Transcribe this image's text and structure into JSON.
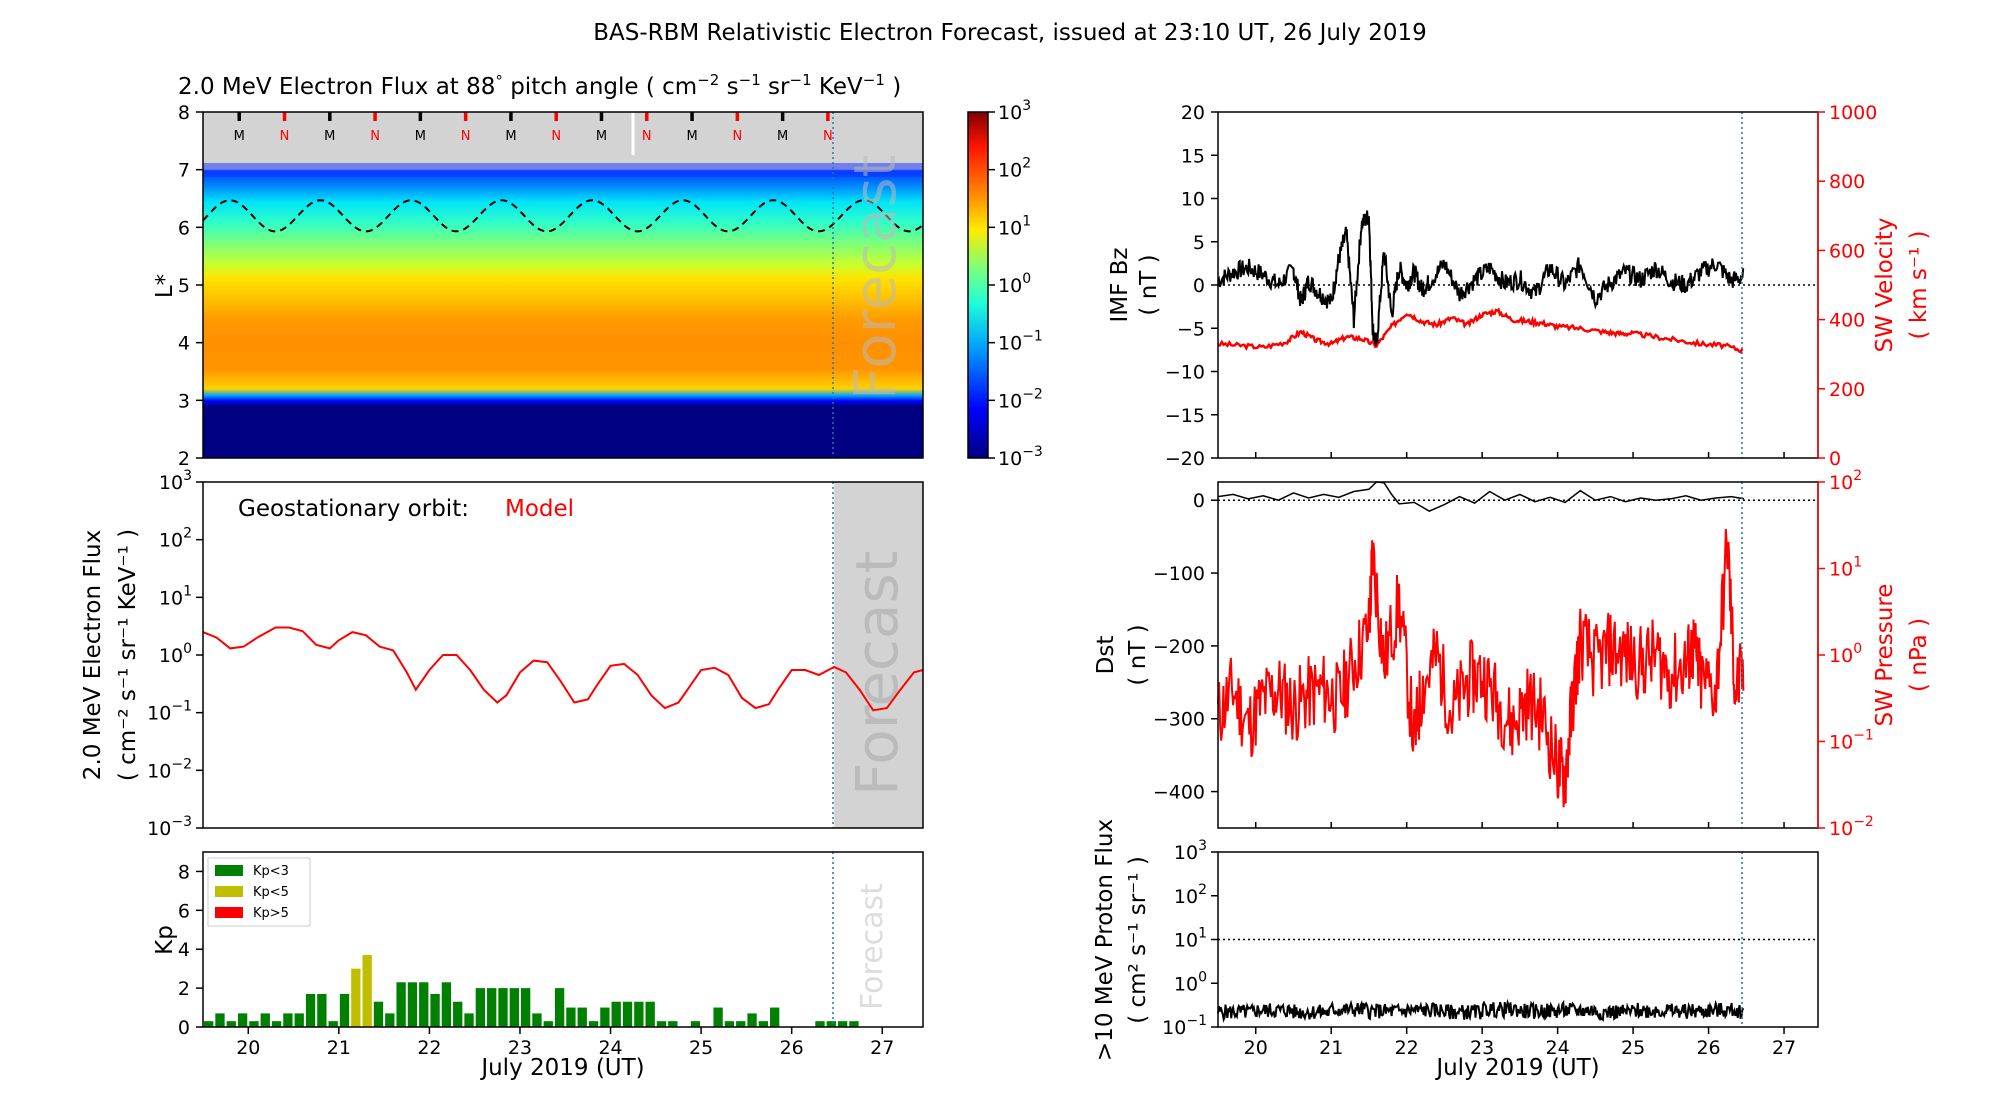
{
  "suptitle": "BAS-RBM Relativistic Electron Forecast, issued at 23:10 UT, 26 July 2019",
  "colors": {
    "red": "#ff0000",
    "kp_low": "#008000",
    "kp_mid": "#bfbf00",
    "kp_high": "#ff0000",
    "forecast_shade": "#d3d3d3",
    "dotted": "#1f77b4",
    "rbm_bg": "#00007f"
  },
  "chart_data": [
    {
      "id": "rbm_heatmap",
      "type": "heatmap",
      "title": "2.0 MeV Electron Flux at 88° pitch angle ( cm⁻² s⁻¹ sr⁻¹ KeV⁻¹ )",
      "title_parts": {
        "main": "2.0 MeV Electron Flux at 88",
        "deg": "°",
        "rest": " pitch angle ( cm",
        "exp1": "−2",
        "s": " s",
        "exp2": "−1",
        "sr": " sr",
        "exp3": "−1",
        "kev": " KeV",
        "exp4": "−1",
        "close": " )"
      },
      "ylabel": "L*",
      "ylim": [
        2,
        8
      ],
      "yticks": [
        "2",
        "3",
        "4",
        "5",
        "6",
        "7",
        "8"
      ],
      "xlim": [
        19.5,
        27.45
      ],
      "mn_markers": [
        "M",
        "N",
        "M",
        "N",
        "M",
        "N",
        "M",
        "N",
        "M",
        "N",
        "M",
        "N",
        "M",
        "N"
      ],
      "mn_x": [
        19.9,
        20.4,
        20.9,
        21.4,
        21.9,
        22.4,
        22.9,
        23.4,
        23.9,
        24.4,
        24.9,
        25.4,
        25.9,
        26.4
      ],
      "colorbar": {
        "min_exp": -3,
        "max_exp": 3,
        "labels": [
          "10",
          "10",
          "10",
          "10",
          "10",
          "10",
          "10"
        ],
        "exps": [
          "−3",
          "−2",
          "−1",
          "0",
          "1",
          "2",
          "3"
        ]
      },
      "forecast_label": "Forecast",
      "forecast_start": 26.47
    },
    {
      "id": "geo_flux",
      "type": "line",
      "label_static": "Geostationary orbit:",
      "label_model": "Model",
      "ylabel_1": "2.0 MeV Electron Flux",
      "ylabel_2": "( cm⁻² s⁻¹ sr⁻¹ KeV⁻¹ )",
      "ylim_exp": [
        -3,
        3
      ],
      "ytick_base": "10",
      "ytick_exps": [
        "−3",
        "−2",
        "−1",
        "0",
        "1",
        "2",
        "3"
      ],
      "xlim": [
        19.5,
        27.45
      ],
      "series": [
        {
          "name": "Model",
          "x": [
            19.5,
            19.65,
            19.8,
            19.95,
            20.1,
            20.3,
            20.45,
            20.6,
            20.75,
            20.9,
            21.0,
            21.15,
            21.3,
            21.45,
            21.6,
            21.75,
            21.85,
            22.0,
            22.15,
            22.3,
            22.45,
            22.6,
            22.75,
            22.85,
            23.0,
            23.15,
            23.3,
            23.45,
            23.6,
            23.75,
            23.85,
            24.0,
            24.15,
            24.3,
            24.45,
            24.6,
            24.75,
            24.85,
            25.0,
            25.15,
            25.3,
            25.45,
            25.6,
            25.75,
            25.85,
            26.0,
            26.15,
            26.3,
            26.47,
            26.6,
            26.75,
            26.9,
            27.05,
            27.2,
            27.35,
            27.45
          ],
          "y": [
            2.5,
            2.0,
            1.3,
            1.4,
            2.0,
            3.0,
            3.0,
            2.6,
            1.5,
            1.3,
            1.8,
            2.5,
            2.2,
            1.4,
            1.2,
            0.5,
            0.25,
            0.55,
            1.0,
            1.0,
            0.55,
            0.25,
            0.15,
            0.2,
            0.5,
            0.8,
            0.75,
            0.35,
            0.15,
            0.17,
            0.3,
            0.65,
            0.7,
            0.45,
            0.2,
            0.12,
            0.15,
            0.25,
            0.55,
            0.6,
            0.45,
            0.18,
            0.12,
            0.14,
            0.25,
            0.55,
            0.55,
            0.45,
            0.62,
            0.5,
            0.25,
            0.11,
            0.12,
            0.25,
            0.5,
            0.55
          ]
        }
      ],
      "forecast_label": "Forecast",
      "forecast_start": 26.47
    },
    {
      "id": "kp",
      "type": "bar",
      "ylabel": "Kp",
      "ylim": [
        0,
        9
      ],
      "yticks": [
        "0",
        "2",
        "4",
        "6",
        "8"
      ],
      "xlim": [
        19.5,
        27.45
      ],
      "xticks": [
        "20",
        "21",
        "22",
        "23",
        "24",
        "25",
        "26",
        "27"
      ],
      "xlabel": "July 2019 (UT)",
      "legend": [
        {
          "label": "Kp<3",
          "color": "#008000"
        },
        {
          "label": "Kp<5",
          "color": "#bfbf00"
        },
        {
          "label": "Kp>5",
          "color": "#ff0000"
        }
      ],
      "values": [
        0.3,
        0.7,
        0.3,
        0.7,
        0.3,
        0.7,
        0.3,
        0.7,
        0.7,
        1.7,
        1.7,
        0.3,
        1.7,
        3.0,
        3.7,
        1.3,
        0.7,
        2.3,
        2.3,
        2.3,
        1.7,
        2.3,
        1.3,
        0.7,
        2.0,
        2.0,
        2.0,
        2.0,
        2.0,
        0.7,
        0.3,
        2.0,
        1.0,
        1.0,
        0.3,
        1.0,
        1.3,
        1.3,
        1.3,
        1.3,
        0.3,
        0.3,
        0,
        0.3,
        0,
        1.0,
        0.3,
        0.3,
        0.7,
        0.3,
        1.0,
        0,
        0,
        0,
        0.3,
        0.3,
        0.3,
        0.3
      ],
      "forecast_label": "Forecast",
      "forecast_start": 26.47
    },
    {
      "id": "imf_sw",
      "type": "line",
      "ylabel_left_1": "IMF Bz",
      "ylabel_left_2": "( nT )",
      "ylabel_right_1": "SW Velocity",
      "ylabel_right_2": "( km s⁻¹ )",
      "ylim_left": [
        -20,
        20
      ],
      "yticks_left": [
        "−20",
        "−15",
        "−10",
        "−5",
        "0",
        "5",
        "10",
        "15",
        "20"
      ],
      "ylim_right": [
        0,
        1000
      ],
      "yticks_right": [
        "0",
        "200",
        "400",
        "600",
        "800",
        "1000"
      ],
      "xlim": [
        19.5,
        27.45
      ],
      "series": [
        {
          "name": "IMF Bz",
          "axis": "left",
          "x": [
            19.5,
            19.7,
            19.9,
            20.1,
            20.3,
            20.5,
            20.6,
            20.7,
            20.85,
            21.0,
            21.1,
            21.2,
            21.3,
            21.4,
            21.5,
            21.55,
            21.6,
            21.7,
            21.8,
            21.9,
            22.0,
            22.1,
            22.2,
            22.3,
            22.5,
            22.7,
            22.9,
            23.1,
            23.3,
            23.5,
            23.7,
            23.9,
            24.1,
            24.3,
            24.5,
            24.7,
            24.9,
            25.1,
            25.3,
            25.5,
            25.7,
            25.9,
            26.1,
            26.3,
            26.47
          ],
          "y": [
            0.5,
            1.5,
            2.0,
            1.2,
            0.0,
            1.8,
            -2.0,
            0.5,
            -1.0,
            -2.0,
            3.0,
            6.0,
            -4.0,
            7.0,
            8.0,
            -5.0,
            -7.0,
            4.0,
            -3.5,
            2.0,
            0.0,
            1.5,
            -0.5,
            0.3,
            2.5,
            -1.0,
            0.6,
            2.0,
            0.2,
            0.7,
            -1.0,
            2.0,
            0.0,
            2.4,
            -1.5,
            0.3,
            1.5,
            0.6,
            2.0,
            0.5,
            0.0,
            1.5,
            2.5,
            0.5,
            1.0
          ]
        },
        {
          "name": "SW Velocity",
          "axis": "right",
          "x": [
            19.5,
            19.8,
            20.1,
            20.4,
            20.6,
            20.8,
            21.0,
            21.2,
            21.4,
            21.6,
            21.8,
            22.0,
            22.2,
            22.4,
            22.6,
            22.8,
            23.0,
            23.2,
            23.4,
            23.6,
            23.8,
            24.0,
            24.3,
            24.6,
            24.8,
            25.0,
            25.3,
            25.6,
            25.9,
            26.2,
            26.47
          ],
          "y": [
            330,
            325,
            320,
            335,
            365,
            340,
            330,
            350,
            345,
            325,
            380,
            420,
            395,
            385,
            405,
            385,
            415,
            425,
            400,
            395,
            390,
            380,
            375,
            365,
            360,
            360,
            350,
            340,
            330,
            325,
            310
          ]
        }
      ]
    },
    {
      "id": "dst_swp",
      "type": "line",
      "ylabel_left_1": "Dst",
      "ylabel_left_2": "( nT )",
      "ylabel_right_1": "SW Pressure",
      "ylabel_right_2": "( nPa )",
      "ylim_left": [
        -450,
        25
      ],
      "yticks_left": [
        "−400",
        "−300",
        "−200",
        "−100",
        "0"
      ],
      "ylim_right_exp": [
        -2,
        2
      ],
      "ytick_base": "10",
      "ytick_exps_right": [
        "−2",
        "−1",
        "0",
        "1",
        "2"
      ],
      "xlim": [
        19.5,
        27.45
      ],
      "series": [
        {
          "name": "Dst",
          "axis": "left",
          "x": [
            19.5,
            19.7,
            19.9,
            20.1,
            20.3,
            20.5,
            20.7,
            20.9,
            21.1,
            21.3,
            21.5,
            21.6,
            21.7,
            21.8,
            21.9,
            22.1,
            22.3,
            22.5,
            22.7,
            22.9,
            23.1,
            23.3,
            23.5,
            23.7,
            23.9,
            24.1,
            24.3,
            24.5,
            24.7,
            24.9,
            25.1,
            25.3,
            25.5,
            25.7,
            25.9,
            26.1,
            26.3,
            26.47
          ],
          "y": [
            5,
            8,
            2,
            6,
            0,
            10,
            3,
            8,
            4,
            12,
            15,
            25,
            24,
            8,
            -5,
            -3,
            -15,
            -6,
            5,
            -4,
            12,
            0,
            8,
            -2,
            4,
            -3,
            13,
            0,
            5,
            -2,
            3,
            0,
            2,
            6,
            0,
            3,
            5,
            2
          ]
        },
        {
          "name": "SW Pressure",
          "axis": "right",
          "x": [
            19.5,
            19.7,
            19.9,
            20.1,
            20.3,
            20.5,
            20.7,
            20.9,
            21.1,
            21.3,
            21.5,
            21.55,
            21.7,
            21.9,
            22.1,
            22.2,
            22.4,
            22.6,
            22.8,
            23.0,
            23.2,
            23.4,
            23.6,
            23.8,
            24.0,
            24.1,
            24.2,
            24.3,
            24.5,
            24.7,
            24.9,
            25.1,
            25.3,
            25.5,
            25.7,
            25.8,
            25.9,
            26.1,
            26.25,
            26.35,
            26.47
          ],
          "y": [
            0.2,
            0.4,
            0.15,
            0.3,
            0.4,
            0.25,
            0.35,
            0.4,
            0.3,
            0.8,
            2.0,
            15.0,
            0.8,
            4.0,
            0.1,
            0.4,
            1.0,
            0.2,
            0.5,
            0.6,
            0.3,
            0.15,
            0.3,
            0.2,
            0.05,
            0.04,
            0.3,
            1.5,
            0.8,
            1.2,
            1.0,
            0.8,
            1.0,
            0.6,
            0.8,
            1.2,
            0.5,
            0.4,
            20.0,
            0.4,
            0.6
          ]
        }
      ],
      "forecast_start": 26.47
    },
    {
      "id": "proton",
      "type": "line",
      "ylabel_1": ">10 MeV Proton Flux",
      "ylabel_2": "( cm² s⁻¹ sr⁻¹ )",
      "ylim_exp": [
        -1,
        3
      ],
      "ytick_base": "10",
      "ytick_exps": [
        "−1",
        "0",
        "1",
        "2",
        "3"
      ],
      "threshold": 10,
      "xlim": [
        19.5,
        27.45
      ],
      "xticks": [
        "20",
        "21",
        "22",
        "23",
        "24",
        "25",
        "26",
        "27"
      ],
      "xlabel": "July 2019 (UT)",
      "series": [
        {
          "name": "Proton Flux",
          "x": [
            19.5,
            20.0,
            20.5,
            21.0,
            21.5,
            22.0,
            22.5,
            23.0,
            23.5,
            24.0,
            24.5,
            25.0,
            25.5,
            26.0,
            26.47
          ],
          "y": [
            0.22,
            0.24,
            0.22,
            0.25,
            0.23,
            0.24,
            0.22,
            0.25,
            0.23,
            0.24,
            0.22,
            0.24,
            0.23,
            0.24,
            0.25
          ]
        }
      ],
      "forecast_start": 26.47
    }
  ]
}
